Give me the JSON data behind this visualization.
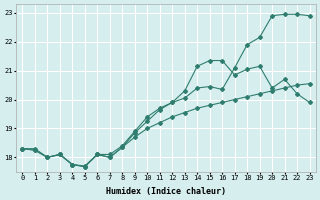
{
  "title": "",
  "xlabel": "Humidex (Indice chaleur)",
  "ylabel": "",
  "bg_color": "#d6eeee",
  "grid_color": "#ffffff",
  "line_color": "#2e7d6e",
  "xlim": [
    -0.5,
    23.5
  ],
  "ylim": [
    17.5,
    23.3
  ],
  "yticks": [
    18,
    19,
    20,
    21,
    22,
    23
  ],
  "xticks": [
    0,
    1,
    2,
    3,
    4,
    5,
    6,
    7,
    8,
    9,
    10,
    11,
    12,
    13,
    14,
    15,
    16,
    17,
    18,
    19,
    20,
    21,
    22,
    23
  ],
  "line1_x": [
    0,
    1,
    2,
    3,
    4,
    5,
    6,
    7,
    8,
    9,
    10,
    11,
    12,
    13,
    14,
    15,
    16,
    17,
    18,
    19,
    20,
    21,
    22,
    23
  ],
  "line1_y": [
    18.3,
    18.25,
    18.0,
    18.1,
    17.75,
    17.68,
    18.1,
    18.0,
    18.35,
    18.85,
    19.25,
    19.65,
    19.9,
    20.05,
    20.4,
    20.45,
    20.35,
    21.1,
    21.9,
    22.15,
    22.9,
    22.95,
    22.95,
    22.9
  ],
  "line2_x": [
    0,
    1,
    2,
    3,
    4,
    5,
    6,
    7,
    8,
    9,
    10,
    11,
    12,
    13,
    14,
    15,
    16,
    17,
    18,
    19,
    20,
    21,
    22,
    23
  ],
  "line2_y": [
    18.3,
    18.3,
    18.0,
    18.1,
    17.75,
    17.7,
    18.1,
    18.1,
    18.4,
    18.9,
    19.4,
    19.7,
    19.9,
    20.3,
    21.15,
    21.35,
    21.35,
    20.85,
    21.05,
    21.15,
    20.4,
    20.7,
    20.2,
    19.9
  ],
  "line3_x": [
    0,
    1,
    2,
    3,
    4,
    5,
    6,
    7,
    8,
    9,
    10,
    11,
    12,
    13,
    14,
    15,
    16,
    17,
    18,
    19,
    20,
    21,
    22,
    23
  ],
  "line3_y": [
    18.3,
    18.25,
    18.0,
    18.1,
    17.75,
    17.68,
    18.1,
    18.0,
    18.35,
    18.7,
    19.0,
    19.2,
    19.4,
    19.55,
    19.7,
    19.8,
    19.9,
    20.0,
    20.1,
    20.2,
    20.3,
    20.4,
    20.5,
    20.55
  ],
  "tick_fontsize": 5,
  "xlabel_fontsize": 6,
  "marker_size": 2.0
}
